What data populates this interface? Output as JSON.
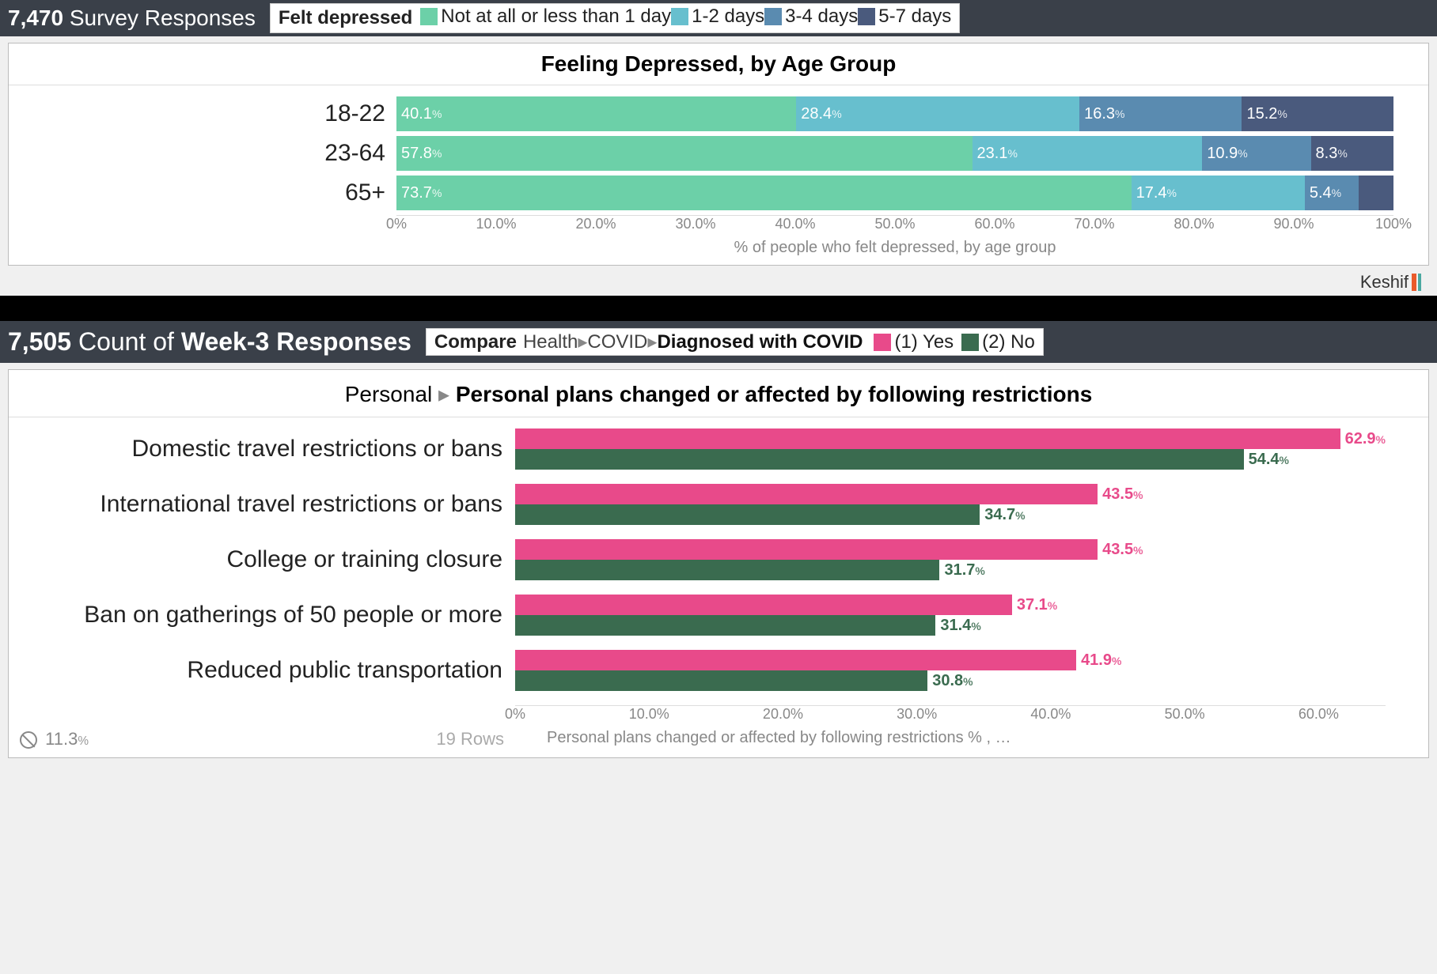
{
  "chart1": {
    "header_count": "7,470",
    "header_text": "Survey Responses",
    "legend_label": "Felt depressed",
    "legend_items": [
      {
        "label": "Not at all or less than 1 day",
        "color": "#6cd0a8"
      },
      {
        "label": "1-2 days",
        "color": "#67bfce"
      },
      {
        "label": "3-4 days",
        "color": "#5a8bb0"
      },
      {
        "label": "5-7 days",
        "color": "#4a5a7d"
      }
    ],
    "panel_title": "Feeling Depressed, by Age Group",
    "rows": [
      {
        "label": "18-22",
        "segments": [
          {
            "value": 40.1,
            "text": "40.1",
            "color": "#6cd0a8"
          },
          {
            "value": 28.4,
            "text": "28.4",
            "color": "#67bfce"
          },
          {
            "value": 16.3,
            "text": "16.3",
            "color": "#5a8bb0"
          },
          {
            "value": 15.2,
            "text": "15.2",
            "color": "#4a5a7d"
          }
        ]
      },
      {
        "label": "23-64",
        "segments": [
          {
            "value": 57.8,
            "text": "57.8",
            "color": "#6cd0a8"
          },
          {
            "value": 23.1,
            "text": "23.1",
            "color": "#67bfce"
          },
          {
            "value": 10.9,
            "text": "10.9",
            "color": "#5a8bb0"
          },
          {
            "value": 8.3,
            "text": "8.3",
            "color": "#4a5a7d"
          }
        ]
      },
      {
        "label": "65+",
        "segments": [
          {
            "value": 73.7,
            "text": "73.7",
            "color": "#6cd0a8"
          },
          {
            "value": 17.4,
            "text": "17.4",
            "color": "#67bfce"
          },
          {
            "value": 5.4,
            "text": "5.4",
            "color": "#5a8bb0"
          },
          {
            "value": 3.5,
            "text": "",
            "color": "#4a5a7d"
          }
        ]
      }
    ],
    "axis_ticks": [
      "0%",
      "10.0%",
      "20.0%",
      "30.0%",
      "40.0%",
      "50.0%",
      "60.0%",
      "70.0%",
      "80.0%",
      "90.0%",
      "100%"
    ],
    "axis_title": "% of people who felt depressed, by age group",
    "branding": "Keshif"
  },
  "chart2": {
    "header_count": "7,505",
    "header_mid": "Count",
    "header_of": "of",
    "header_text": "Week-3 Responses",
    "compare_prefix": "Compare",
    "breadcrumb": [
      "Health",
      "COVID",
      "Diagnosed with COVID"
    ],
    "legend_items": [
      {
        "label": "(1) Yes",
        "color": "#e84a8a"
      },
      {
        "label": "(2) No",
        "color": "#3a6b4f"
      }
    ],
    "panel_breadcrumb_light": "Personal",
    "panel_breadcrumb_bold": "Personal plans changed or affected by following restrictions",
    "x_max": 65,
    "rows": [
      {
        "label": "Domestic travel restrictions or bans",
        "yes": 62.9,
        "no": 54.4
      },
      {
        "label": "International travel restrictions or bans",
        "yes": 43.5,
        "no": 34.7
      },
      {
        "label": "College or training closure",
        "yes": 43.5,
        "no": 31.7
      },
      {
        "label": "Ban on gatherings of 50 people or more",
        "yes": 37.1,
        "no": 31.4
      },
      {
        "label": "Reduced public transportation",
        "yes": 41.9,
        "no": 30.8
      }
    ],
    "axis_ticks": [
      {
        "pos": 0,
        "label": "0%"
      },
      {
        "pos": 10,
        "label": "10.0%"
      },
      {
        "pos": 20,
        "label": "20.0%"
      },
      {
        "pos": 30,
        "label": "30.0%"
      },
      {
        "pos": 40,
        "label": "40.0%"
      },
      {
        "pos": 50,
        "label": "50.0%"
      },
      {
        "pos": 60,
        "label": "60.0%"
      }
    ],
    "axis_title": "Personal plans changed or affected by following restrictions % , …",
    "null_pct": "11.3",
    "rows_count": "19 Rows"
  }
}
